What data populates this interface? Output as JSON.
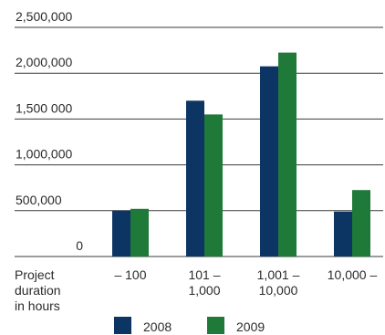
{
  "chart_data": {
    "type": "bar",
    "title": "",
    "xlabel": "Project\nduration\nin hours",
    "ylabel": "",
    "ylim": [
      0,
      2500000
    ],
    "y_ticks": [
      {
        "value": 0,
        "label": "0"
      },
      {
        "value": 500000,
        "label": "500,000"
      },
      {
        "value": 1000000,
        "label": "1,000,000"
      },
      {
        "value": 1500000,
        "label": "1,500 000"
      },
      {
        "value": 2000000,
        "label": "2,000,000"
      },
      {
        "value": 2500000,
        "label": "2,500,000"
      }
    ],
    "grid": true,
    "legend_position": "bottom",
    "categories": [
      "– 100",
      "101 –\n1,000",
      "1,001 –\n10,000",
      "10,000 –"
    ],
    "series": [
      {
        "name": "2008",
        "color": "#0d3564",
        "values": [
          500000,
          1700000,
          2075000,
          490000
        ]
      },
      {
        "name": "2009",
        "color": "#1f7a3a",
        "values": [
          520000,
          1550000,
          2225000,
          725000
        ]
      }
    ]
  }
}
